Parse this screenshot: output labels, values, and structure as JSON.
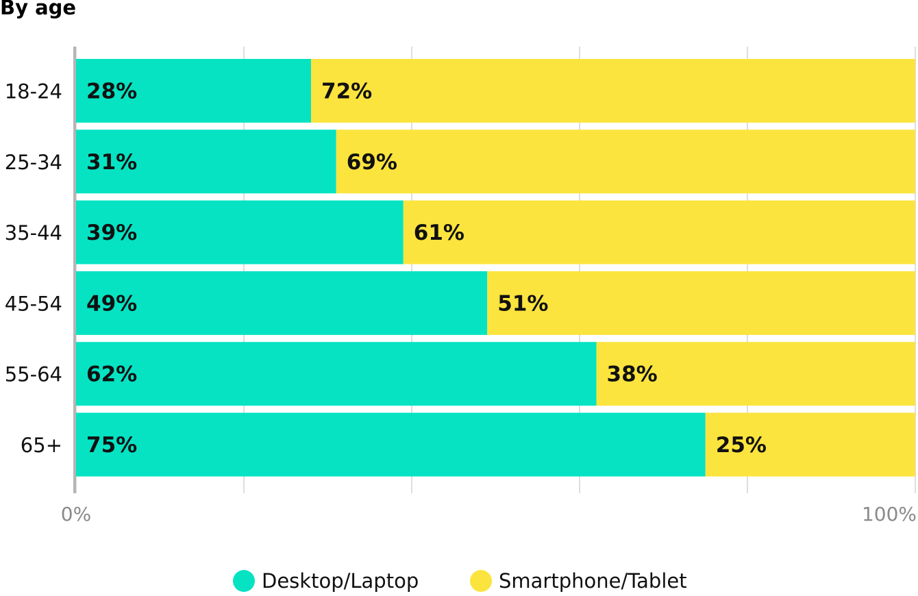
{
  "title": "By age",
  "colors": {
    "desktop": "#05E3C3",
    "mobile": "#FCE43E",
    "grid": "#d4d4d4",
    "axis": "#b5b5b5",
    "tick_text": "#8a8a8a"
  },
  "legend": [
    {
      "label": "Desktop/Laptop",
      "color": "#05E3C3"
    },
    {
      "label": "Smartphone/Tablet",
      "color": "#FCE43E"
    }
  ],
  "chart_data": {
    "type": "bar",
    "orientation": "horizontal",
    "stacked": true,
    "title": "By age",
    "categories": [
      "18-24",
      "25-34",
      "35-44",
      "45-54",
      "55-64",
      "65+"
    ],
    "series": [
      {
        "name": "Desktop/Laptop",
        "values": [
          28,
          31,
          39,
          49,
          62,
          75
        ],
        "labels": [
          "28%",
          "31%",
          "39%",
          "49%",
          "62%",
          "75%"
        ]
      },
      {
        "name": "Smartphone/Tablet",
        "values": [
          72,
          69,
          61,
          51,
          38,
          25
        ],
        "labels": [
          "72%",
          "69%",
          "61%",
          "51%",
          "38%",
          "25%"
        ]
      }
    ],
    "xlim": [
      0,
      100
    ],
    "x_tick_labels": [
      "0%",
      "100%"
    ],
    "grid": true,
    "legend_position": "bottom"
  }
}
